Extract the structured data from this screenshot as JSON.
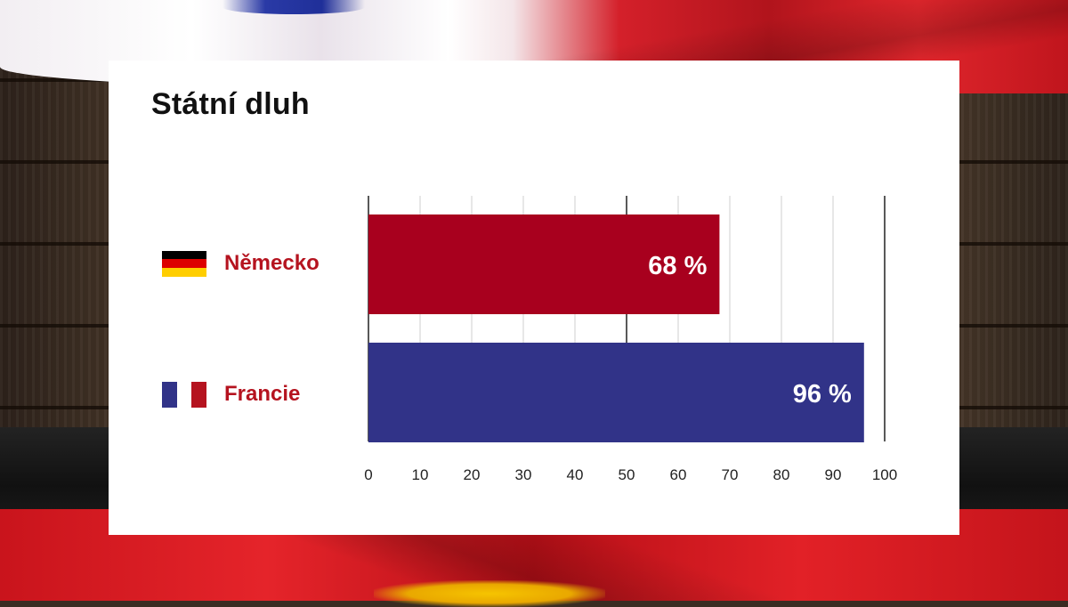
{
  "colors": {
    "germany_bar": "#a8001e",
    "france_bar": "#313388",
    "label_red": "#b5131f",
    "grid": "#cfcfcf",
    "axis": "#222222"
  },
  "chart_data": {
    "type": "bar",
    "orientation": "horizontal",
    "title": "Státní dluh",
    "categories": [
      "Německo",
      "Francie"
    ],
    "values": [
      68,
      96
    ],
    "value_labels": [
      "68 %",
      "96 %"
    ],
    "bar_colors": [
      "#a8001e",
      "#313388"
    ],
    "flags": [
      "germany-flag",
      "france-flag"
    ],
    "xlim": [
      0,
      100
    ],
    "xticks": [
      "0",
      "10",
      "20",
      "30",
      "40",
      "50",
      "60",
      "70",
      "80",
      "90",
      "100"
    ],
    "xlabel": "",
    "ylabel": "",
    "grid": true
  }
}
